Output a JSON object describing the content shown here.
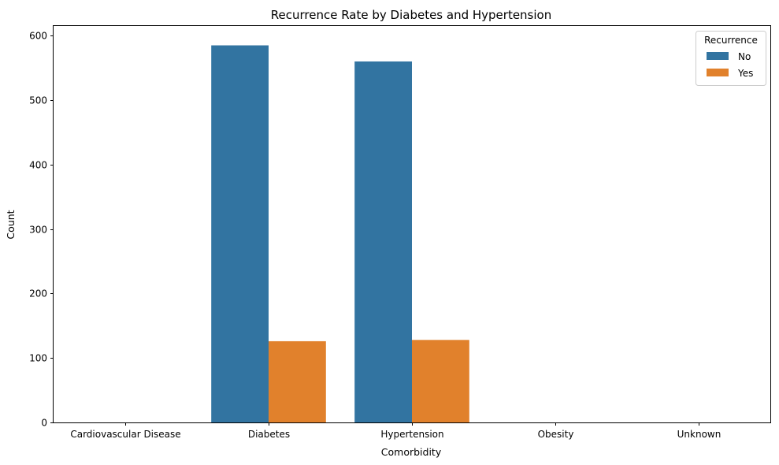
{
  "chart_data": {
    "type": "bar",
    "title": "Recurrence Rate by Diabetes and Hypertension",
    "xlabel": "Comorbidity",
    "ylabel": "Count",
    "categories": [
      "Cardiovascular Disease",
      "Diabetes",
      "Hypertension",
      "Obesity",
      "Unknown"
    ],
    "series": [
      {
        "name": "No",
        "values": [
          0,
          585,
          560,
          0,
          0
        ],
        "color": "#3274a1"
      },
      {
        "name": "Yes",
        "values": [
          0,
          126,
          128,
          0,
          0
        ],
        "color": "#e1812c"
      }
    ],
    "ylim": [
      0,
      615
    ],
    "yticks": [
      0,
      100,
      200,
      300,
      400,
      500,
      600
    ],
    "legend": {
      "title": "Recurrence",
      "position": "top-right"
    },
    "grid": false
  }
}
